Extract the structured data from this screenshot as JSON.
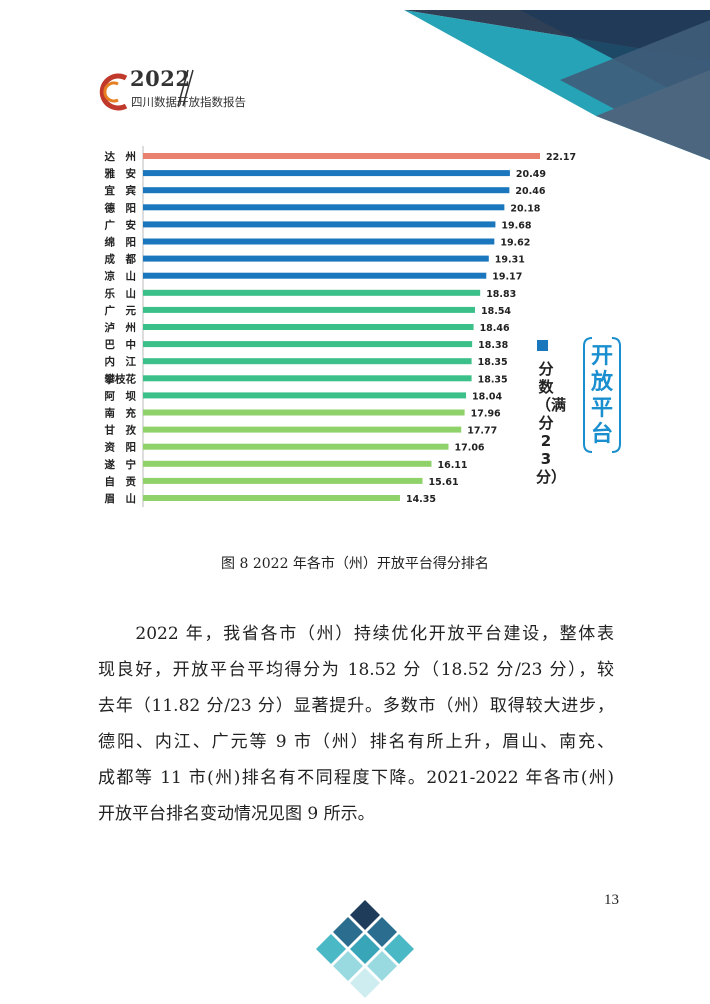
{
  "header": {
    "year": "2022",
    "title": "四川数据开放指数报告"
  },
  "colors": {
    "top_bar": "#e8826f",
    "blue_bars": "#1a77bd",
    "green_bars": "#3cc08a",
    "light_green_bars": "#8fd26a",
    "legend": "#1a77bd",
    "side_title": "#1a8fd0"
  },
  "chart_data": {
    "type": "bar",
    "orientation": "horizontal",
    "categories": [
      "达　州",
      "雅　安",
      "宜　宾",
      "德　阳",
      "广　安",
      "绵　阳",
      "成　都",
      "凉　山",
      "乐　山",
      "广　元",
      "泸　州",
      "巴　中",
      "内　江",
      "攀枝花",
      "阿　坝",
      "南　充",
      "甘　孜",
      "资　阳",
      "遂　宁",
      "自　贡",
      "眉　山"
    ],
    "values": [
      22.17,
      20.49,
      20.46,
      20.18,
      19.68,
      19.62,
      19.31,
      19.17,
      18.83,
      18.54,
      18.46,
      18.38,
      18.35,
      18.35,
      18.04,
      17.96,
      17.77,
      17.06,
      16.11,
      15.61,
      14.35
    ],
    "value_labels": [
      "22.17",
      "20.49",
      "20.46",
      "20.18",
      "19.68",
      "19.62",
      "19.31",
      "19.17",
      "18.83",
      "18.54",
      "18.46",
      "18.38",
      "18.35",
      "18.35",
      "18.04",
      "17.96",
      "17.77",
      "17.06",
      "16.11",
      "15.61",
      "14.35"
    ],
    "bar_colors": [
      "#e8826f",
      "#1a77bd",
      "#1a77bd",
      "#1a77bd",
      "#1a77bd",
      "#1a77bd",
      "#1a77bd",
      "#1a77bd",
      "#3cc08a",
      "#3cc08a",
      "#3cc08a",
      "#3cc08a",
      "#3cc08a",
      "#3cc08a",
      "#3cc08a",
      "#8fd26a",
      "#8fd26a",
      "#8fd26a",
      "#8fd26a",
      "#8fd26a",
      "#8fd26a"
    ],
    "xlim": [
      0,
      23
    ],
    "legend": "分数（满分23分）",
    "legend_placement": "right",
    "side_title": "开放平台",
    "grid": false
  },
  "caption": "图 8 2022 年各市（州）开放平台得分排名",
  "body_lines": [
    "　　2022 年，我省各市（州）持续优化开放平台建设，整体表",
    "现良好，开放平台平均得分为 18.52 分（18.52 分/23 分），较",
    "去年（11.82 分/23 分）显著提升。多数市（州）取得较大进步，",
    "德阳、内江、广元等 9 市（州）排名有所上升，眉山、南充、",
    "成都等 11 市(州)排名有不同程度下降。2021-2022 年各市(州)",
    "开放平台排名变动情况见图 9 所示。"
  ],
  "page_number": "13"
}
